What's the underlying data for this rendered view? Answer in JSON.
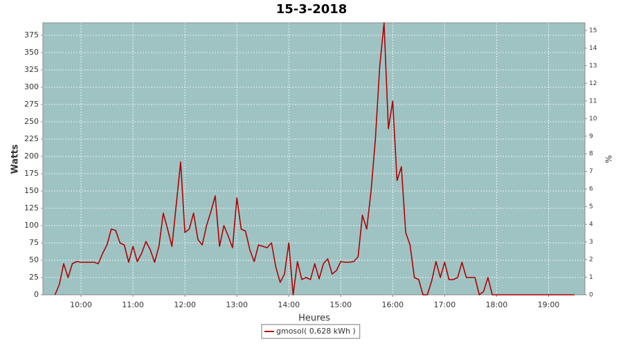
{
  "chart_data": {
    "type": "line",
    "title": "15-3-2018",
    "x_label": "Heures",
    "y_label": "Watts",
    "y2_label": "%",
    "x": [
      "09:30",
      "09:35",
      "09:40",
      "09:45",
      "09:50",
      "09:55",
      "10:00",
      "10:05",
      "10:10",
      "10:15",
      "10:20",
      "10:25",
      "10:30",
      "10:35",
      "10:40",
      "10:45",
      "10:50",
      "10:55",
      "11:00",
      "11:05",
      "11:10",
      "11:15",
      "11:20",
      "11:25",
      "11:30",
      "11:35",
      "11:40",
      "11:45",
      "11:50",
      "11:55",
      "12:00",
      "12:05",
      "12:10",
      "12:15",
      "12:20",
      "12:25",
      "12:30",
      "12:35",
      "12:40",
      "12:45",
      "12:50",
      "12:55",
      "13:00",
      "13:05",
      "13:10",
      "13:15",
      "13:20",
      "13:25",
      "13:30",
      "13:35",
      "13:40",
      "13:45",
      "13:50",
      "13:55",
      "14:00",
      "14:05",
      "14:10",
      "14:15",
      "14:20",
      "14:25",
      "14:30",
      "14:35",
      "14:40",
      "14:45",
      "14:50",
      "14:55",
      "15:00",
      "15:05",
      "15:10",
      "15:15",
      "15:20",
      "15:25",
      "15:30",
      "15:35",
      "15:40",
      "15:45",
      "15:50",
      "15:55",
      "16:00",
      "16:05",
      "16:10",
      "16:15",
      "16:20",
      "16:25",
      "16:30",
      "16:35",
      "16:40",
      "16:45",
      "16:50",
      "16:55",
      "17:00",
      "17:05",
      "17:10",
      "17:15",
      "17:20",
      "17:25",
      "17:30",
      "17:35",
      "17:40",
      "17:45",
      "17:50",
      "17:55",
      "18:00",
      "18:10",
      "18:20",
      "18:30",
      "18:40",
      "18:50",
      "19:00",
      "19:10",
      "19:20",
      "19:30"
    ],
    "series": [
      {
        "name": "gmosol( 0,628 kWh )",
        "color": "#b00000",
        "values": [
          0,
          15,
          45,
          25,
          45,
          48,
          47,
          47,
          47,
          47,
          45,
          60,
          72,
          95,
          93,
          75,
          72,
          47,
          70,
          48,
          60,
          77,
          65,
          47,
          70,
          118,
          95,
          70,
          130,
          192,
          90,
          95,
          118,
          80,
          72,
          100,
          120,
          143,
          70,
          100,
          85,
          68,
          140,
          95,
          92,
          65,
          48,
          72,
          70,
          68,
          75,
          40,
          18,
          30,
          75,
          0,
          48,
          22,
          25,
          22,
          45,
          23,
          45,
          52,
          30,
          35,
          48,
          47,
          47,
          48,
          55,
          115,
          95,
          150,
          225,
          330,
          393,
          240,
          280,
          165,
          185,
          90,
          72,
          25,
          22,
          0,
          0,
          20,
          48,
          25,
          47,
          22,
          22,
          25,
          47,
          25,
          25,
          25,
          0,
          5,
          25,
          0,
          0,
          0,
          0,
          0,
          0,
          0,
          0,
          0,
          0,
          0
        ]
      }
    ],
    "xlim": [
      "09:16",
      "19:42"
    ],
    "xticks": [
      "10:00",
      "11:00",
      "12:00",
      "13:00",
      "14:00",
      "15:00",
      "16:00",
      "17:00",
      "18:00",
      "19:00"
    ],
    "ylim": [
      0,
      393
    ],
    "yticks": [
      0,
      25,
      50,
      75,
      100,
      125,
      150,
      175,
      200,
      225,
      250,
      275,
      300,
      325,
      350,
      375
    ],
    "y2lim": [
      0,
      15.43
    ],
    "y2ticks": [
      0,
      1,
      2,
      3,
      4,
      5,
      6,
      7,
      8,
      9,
      10,
      11,
      12,
      13,
      14,
      15
    ],
    "grid": true,
    "plot_background": "#9fc3c3"
  }
}
